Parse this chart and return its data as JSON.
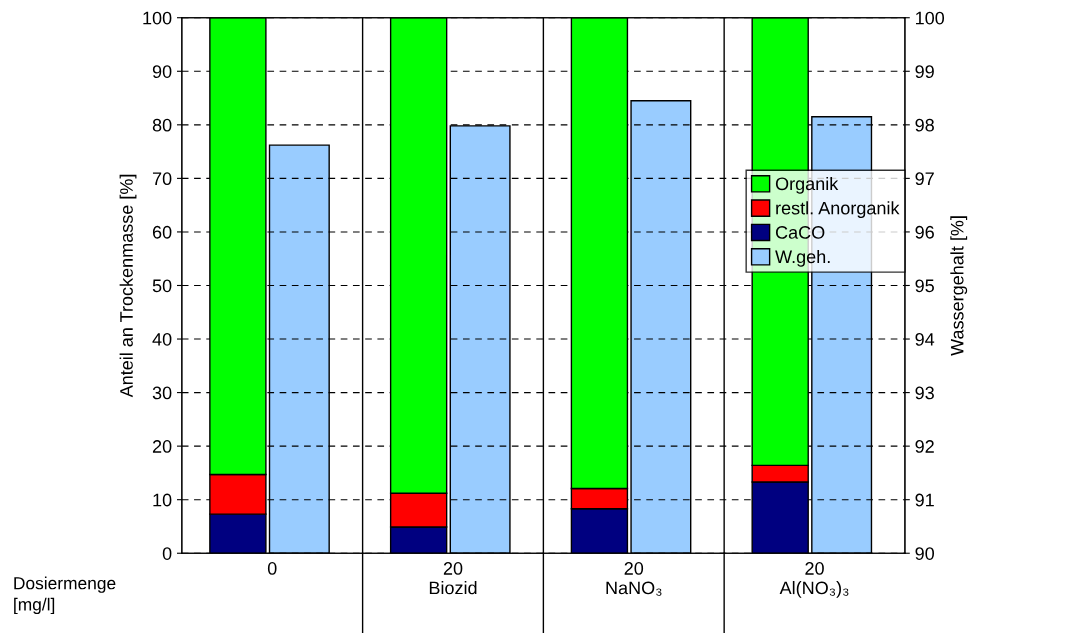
{
  "chart_data": {
    "type": "bar",
    "stacked": true,
    "categories": [
      "0",
      "20\nBiozid",
      "20\nNaNO₃",
      "20\nAl(NO₃)₃"
    ],
    "series": [
      {
        "name": "CaCO",
        "color": "#000080",
        "values": [
          7.3,
          4.9,
          8.3,
          13.3
        ]
      },
      {
        "name": "restl. Anorganik",
        "color": "#ff0000",
        "values": [
          7.4,
          6.3,
          3.8,
          3.1
        ]
      },
      {
        "name": "Organik",
        "color": "#00ff00",
        "values": [
          85.3,
          88.8,
          87.9,
          83.6
        ]
      },
      {
        "name": "W.geh.",
        "color": "#99ccff",
        "axis": "y2",
        "values": [
          97.62,
          97.98,
          98.45,
          98.15
        ]
      }
    ],
    "ylabel": "Anteil an Trockenmasse [%]",
    "y2label": "Wassergehalt [%]",
    "ylim": [
      0,
      100
    ],
    "yticks": [
      0,
      10,
      20,
      30,
      40,
      50,
      60,
      70,
      80,
      90,
      100
    ],
    "y2lim": [
      90,
      100
    ],
    "y2ticks": [
      90,
      91,
      92,
      93,
      94,
      95,
      96,
      97,
      98,
      99,
      100
    ],
    "grid": "y",
    "legend": "right",
    "annotations": [
      "Dosiermenge\n[mg/l]"
    ]
  }
}
